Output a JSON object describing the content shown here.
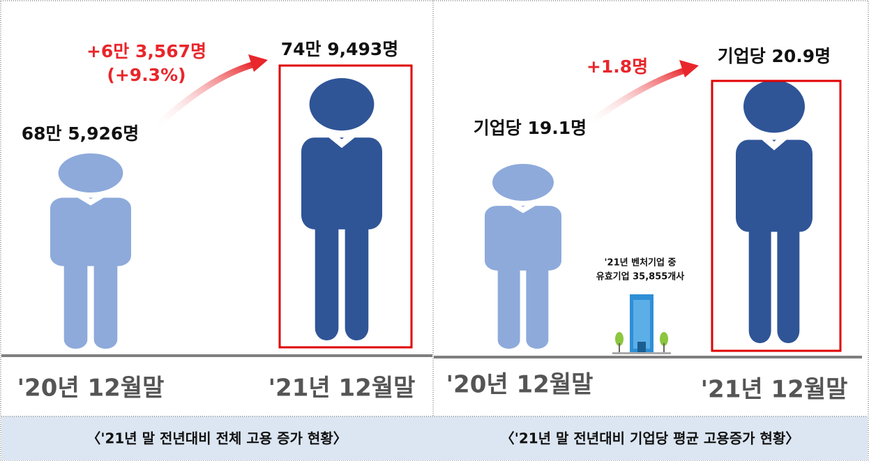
{
  "panels": [
    {
      "increase": "+6만 3,567명",
      "increase_pct": "(+9.3%)",
      "after_value": "74만 9,493명",
      "before_value": "68만 5,926명",
      "before_label": "'20년 12월말",
      "after_label": "'21년 12월말",
      "caption": "〈'21년 말 전년대비 전체 고용 증가 현황〉"
    },
    {
      "increase": "+1.8명",
      "after_value": "기업당 20.9명",
      "before_value": "기업당 19.1명",
      "note": [
        "'21년 벤처기업 중",
        "유효기업 35,855개사"
      ],
      "before_label": "'20년 12월말",
      "after_label": "'21년 12월말",
      "caption": "〈'21년 말 전년대비 기업당 평균 고용증가 현황〉"
    }
  ]
}
